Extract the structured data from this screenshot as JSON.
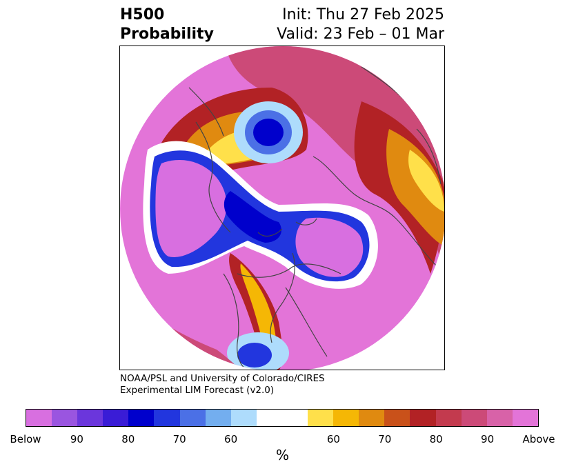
{
  "title": {
    "left_line1": "H500",
    "left_line2": "Probability",
    "right_line1": "Init: Thu 27 Feb 2025",
    "right_line2": "Valid: 23 Feb – 01 Mar"
  },
  "credit": {
    "line1": "NOAA/PSL and University of Colorado/CIRES",
    "line2": "Experimental LIM Forecast (v2.0)"
  },
  "colorbar": {
    "unit": "%",
    "tick_labels": [
      "Below",
      "90",
      "80",
      "70",
      "60",
      "60",
      "70",
      "80",
      "90",
      "Above"
    ],
    "colors": [
      "#d86fe0",
      "#9a55e0",
      "#6b36dc",
      "#3a1cd6",
      "#0000cc",
      "#2236de",
      "#4b70e6",
      "#73aeef",
      "#aedcfc",
      "#ffffff",
      "#ffe04a",
      "#f5b705",
      "#e08a10",
      "#c9511a",
      "#b22225",
      "#c33a4e",
      "#cc4a78",
      "#d862a8",
      "#e374d8"
    ]
  },
  "map": {
    "projection": "north-polar-stereographic",
    "colors": {
      "above_far": "#e374d8",
      "above_90": "#d862a8",
      "above_85": "#cc4a78",
      "above_80": "#c33a4e",
      "above_75": "#b22225",
      "above_70": "#c9511a",
      "above_65": "#e08a10",
      "above_60": "#f5b705",
      "above_55": "#ffe04a",
      "neutral": "#ffffff",
      "below_55": "#aedcfc",
      "below_60": "#73aeef",
      "below_65": "#4b70e6",
      "below_70": "#2236de",
      "below_75": "#0000cc",
      "below_80": "#3a1cd6",
      "below_85": "#6b36dc",
      "below_90": "#9a55e0",
      "below_far": "#d86fe0",
      "coast": "#444444"
    }
  }
}
